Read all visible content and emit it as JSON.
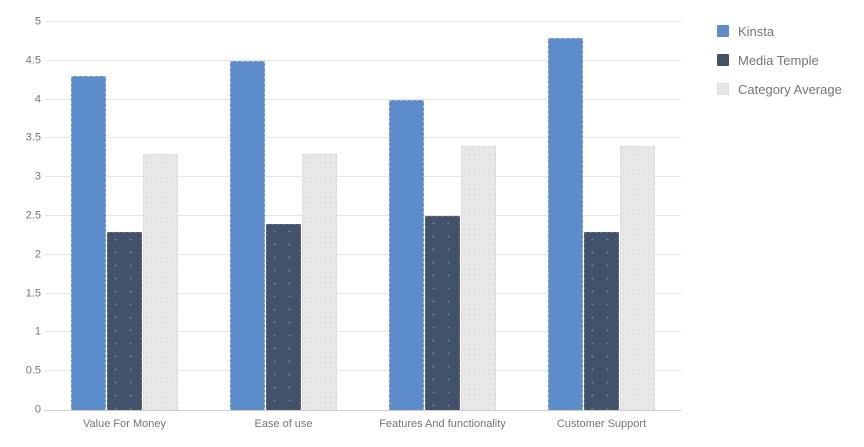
{
  "chart_data": {
    "type": "bar",
    "title": "",
    "categories": [
      "Value For Money",
      "Ease of use",
      "Features And functionality",
      "Customer Support"
    ],
    "series": [
      {
        "name": "Kinsta",
        "color": "#5C8CCB",
        "values": [
          4.3,
          4.5,
          4.0,
          4.8
        ]
      },
      {
        "name": "Media Temple",
        "color": "#42526B",
        "values": [
          2.3,
          2.4,
          2.5,
          2.3
        ]
      },
      {
        "name": "Category Average",
        "color": "#E8E8E8",
        "values": [
          3.3,
          3.3,
          3.4,
          3.4
        ]
      }
    ],
    "xlabel": "",
    "ylabel": "",
    "ylim": [
      0,
      5
    ],
    "yticks": [
      0,
      0.5,
      1,
      1.5,
      2,
      2.5,
      3,
      3.5,
      4,
      4.5,
      5
    ],
    "grid": true,
    "legend_position": "right"
  },
  "colors": {
    "grid_line": "#e6e6e6",
    "axis_baseline": "#cccccc",
    "axis_text": "#757575",
    "legend_text": "#757575",
    "background": "#ffffff"
  }
}
